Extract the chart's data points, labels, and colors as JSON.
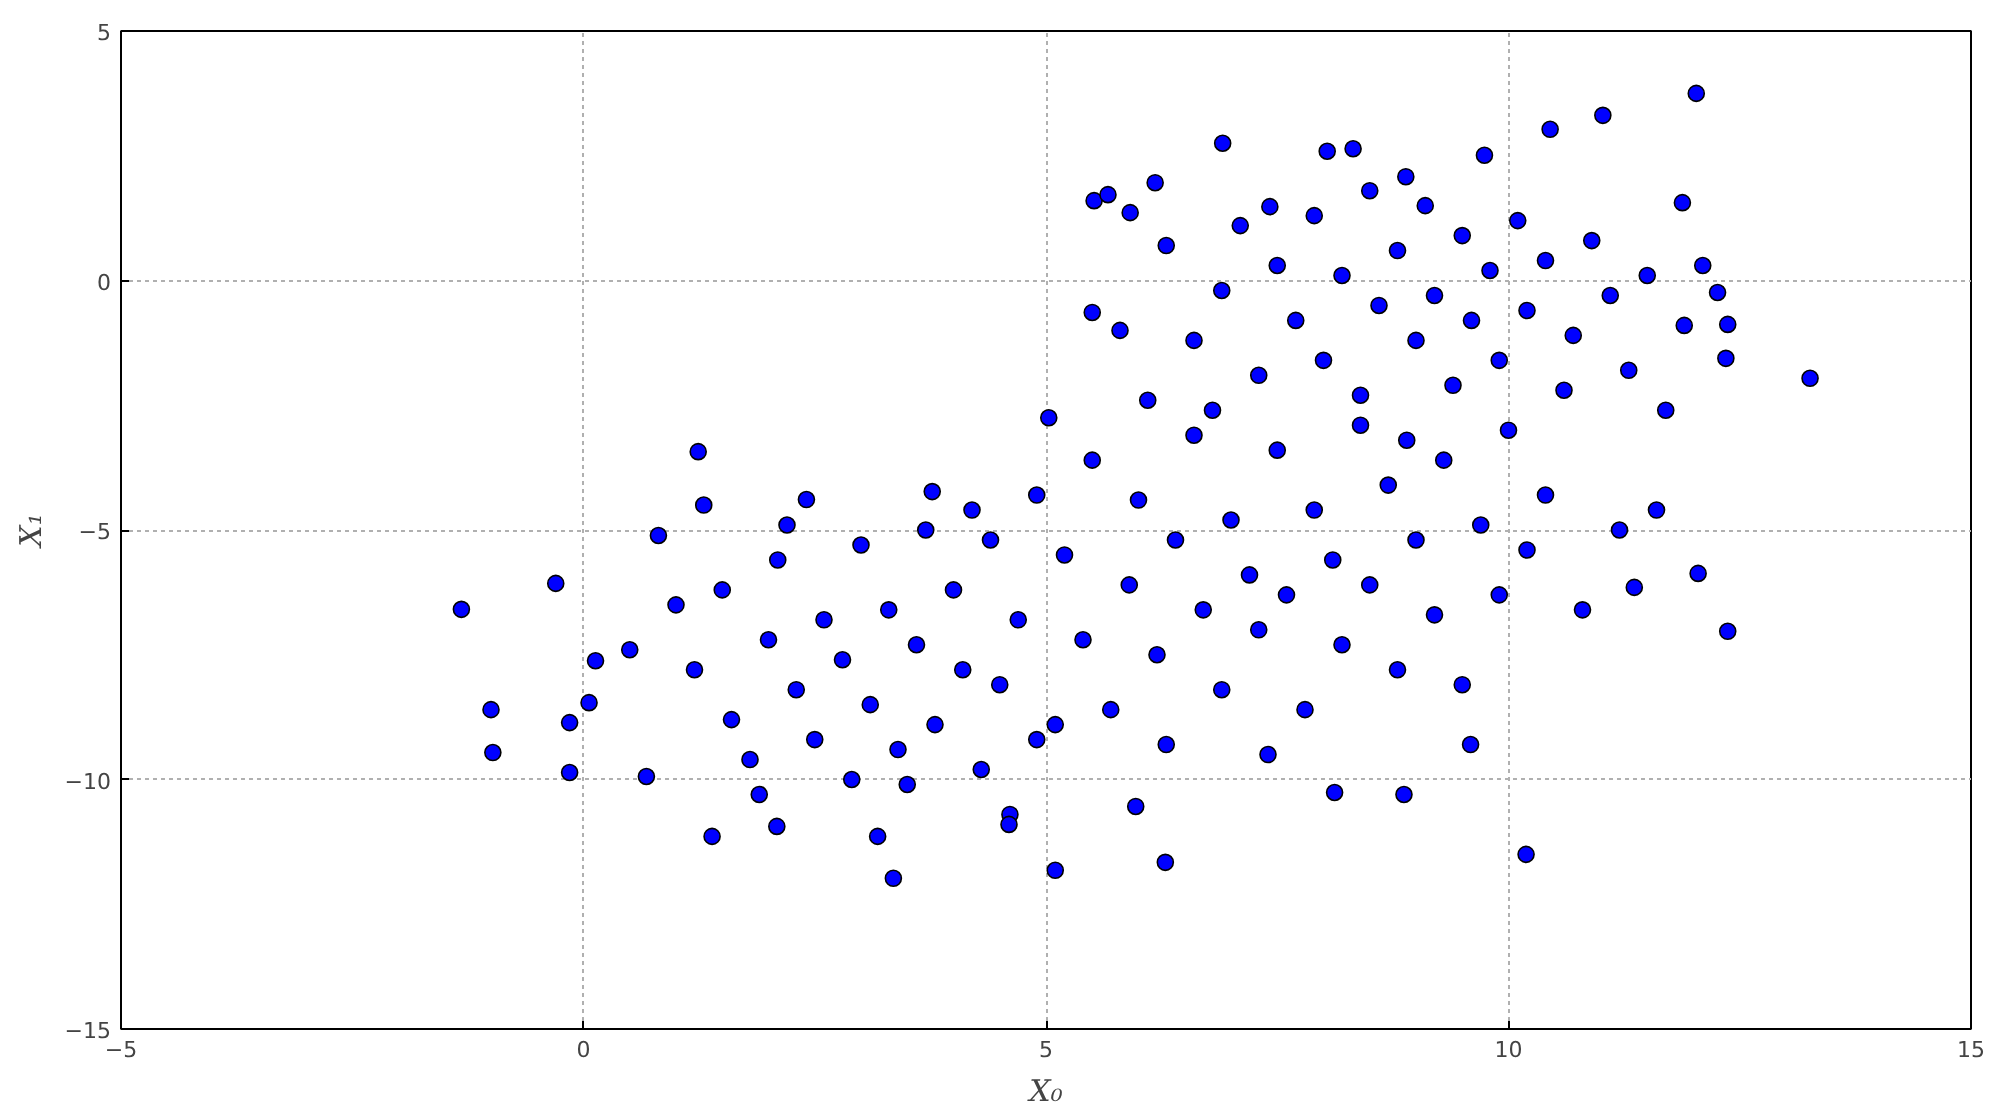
{
  "chart_data": {
    "type": "scatter",
    "xlabel": "X₀",
    "ylabel": "X₁",
    "xlim": [
      -5,
      15
    ],
    "ylim": [
      -15,
      5
    ],
    "xticks": [
      -5,
      0,
      5,
      10,
      15
    ],
    "yticks": [
      -15,
      -10,
      -5,
      0,
      5
    ],
    "grid": true,
    "marker": "circle",
    "series": [
      {
        "color": "#0000ff",
        "x": [
          -1.32,
          -0.3,
          -1.0,
          -0.98,
          -0.15,
          -0.15,
          0.13,
          0.06,
          0.81,
          0.68,
          1.24,
          1.39,
          2.09,
          2.41,
          3.18,
          3.35,
          3.77,
          4.61,
          5.1,
          6.29,
          5.97,
          5.03,
          5.5,
          5.52,
          5.67,
          5.91,
          6.18,
          6.91,
          7.42,
          8.04,
          8.32,
          8.89,
          9.74,
          10.45,
          11.02,
          12.03,
          13.26,
          12.37,
          12.35,
          12.37,
          12.05,
          11.36,
          10.19,
          8.87,
          8.12,
          7.4,
          12.26,
          11.88,
          9.59,
          1.0,
          1.2,
          1.5,
          1.6,
          1.8,
          2.0,
          2.1,
          2.3,
          2.5,
          2.6,
          2.8,
          2.9,
          3.0,
          3.1,
          3.3,
          3.4,
          3.6,
          3.7,
          3.8,
          4.0,
          4.1,
          4.3,
          4.4,
          4.5,
          4.7,
          4.9,
          4.9,
          1.3,
          2.2,
          0.5,
          1.9,
          3.5,
          4.6,
          5.2,
          5.4,
          5.5,
          5.7,
          5.9,
          6.0,
          6.2,
          6.3,
          6.4,
          6.6,
          6.7,
          6.9,
          7.0,
          7.2,
          7.3,
          7.5,
          7.6,
          7.8,
          7.9,
          8.1,
          8.2,
          8.4,
          8.5,
          8.7,
          8.8,
          9.0,
          9.2,
          9.3,
          9.5,
          9.7,
          9.9,
          10.2,
          10.4,
          10.8,
          11.2,
          11.6,
          6.1,
          5.1,
          4.2,
          6.3,
          6.6,
          6.9,
          7.1,
          7.3,
          7.5,
          7.7,
          7.9,
          8.0,
          8.2,
          8.4,
          8.5,
          8.6,
          8.8,
          9.0,
          9.1,
          9.2,
          9.4,
          9.5,
          9.6,
          9.8,
          9.9,
          10.1,
          10.2,
          10.4,
          10.6,
          10.7,
          10.9,
          11.1,
          11.3,
          11.5,
          11.7,
          11.9,
          12.1,
          5.8,
          6.8,
          10.0,
          8.9
        ],
        "values": [
          -6.59,
          -6.07,
          -8.6,
          -9.46,
          -8.86,
          -9.86,
          -7.62,
          -8.46,
          -5.11,
          -9.94,
          -3.43,
          -11.14,
          -10.94,
          -4.39,
          -11.14,
          -11.98,
          -4.23,
          -10.7,
          -11.82,
          -11.66,
          -10.54,
          -2.75,
          -0.64,
          1.6,
          1.72,
          1.36,
          1.96,
          2.75,
          1.48,
          2.59,
          2.64,
          2.08,
          2.51,
          3.03,
          3.31,
          3.75,
          -1.96,
          -0.88,
          -1.56,
          -7.03,
          -5.87,
          -6.15,
          -11.5,
          -10.3,
          -10.26,
          -9.5,
          -0.24,
          1.56,
          -9.3,
          -6.5,
          -7.8,
          -6.2,
          -8.8,
          -9.6,
          -7.2,
          -5.6,
          -8.2,
          -9.2,
          -6.8,
          -7.6,
          -10.0,
          -5.3,
          -8.5,
          -6.6,
          -9.4,
          -7.3,
          -5.0,
          -8.9,
          -6.2,
          -7.8,
          -9.8,
          -5.2,
          -8.1,
          -6.8,
          -4.3,
          -9.2,
          -4.5,
          -4.9,
          -7.4,
          -10.3,
          -10.1,
          -10.9,
          -5.5,
          -7.2,
          -3.6,
          -8.6,
          -6.1,
          -4.4,
          -7.5,
          -9.3,
          -5.2,
          -3.1,
          -6.6,
          -8.2,
          -4.8,
          -5.9,
          -7.0,
          -3.4,
          -6.3,
          -8.6,
          -4.6,
          -5.6,
          -7.3,
          -2.9,
          -6.1,
          -4.1,
          -7.8,
          -5.2,
          -6.7,
          -3.6,
          -8.1,
          -4.9,
          -6.3,
          -5.4,
          -4.3,
          -6.6,
          -5.0,
          -4.6,
          -2.4,
          -8.9,
          -4.6,
          0.7,
          -1.2,
          -0.2,
          1.1,
          -1.9,
          0.3,
          -0.8,
          1.3,
          -1.6,
          0.1,
          -2.3,
          1.8,
          -0.5,
          0.6,
          -1.2,
          1.5,
          -0.3,
          -2.1,
          0.9,
          -0.8,
          0.2,
          -1.6,
          1.2,
          -0.6,
          0.4,
          -2.2,
          -1.1,
          0.8,
          -0.3,
          -1.8,
          0.1,
          -2.6,
          -0.9,
          0.3,
          -1.0,
          -2.6,
          -3.0,
          -3.2
        ]
      }
    ]
  }
}
